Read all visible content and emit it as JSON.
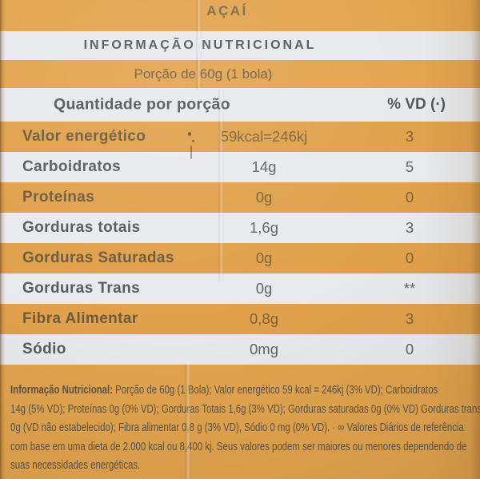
{
  "title": "AÇAÍ",
  "section_header": "INFORMAÇÃO NUTRICIONAL",
  "serving": "Porção de 60g (1 bola)",
  "table": {
    "quantity_header": "Quantidade por porção",
    "vd_header": "% VD (·)",
    "rows": [
      {
        "label": "Valor energético",
        "value": "59kcal=246kj",
        "vd": "3"
      },
      {
        "label": "Carboidratos",
        "value": "14g",
        "vd": "5"
      },
      {
        "label": "Proteínas",
        "value": "0g",
        "vd": "0"
      },
      {
        "label": "Gorduras totais",
        "value": "1,6g",
        "vd": "3"
      },
      {
        "label": "Gorduras Saturadas",
        "value": "0g",
        "vd": "0"
      },
      {
        "label": "Gorduras Trans",
        "value": "0g",
        "vd": "**"
      },
      {
        "label": "Fibra Alimentar",
        "value": "0,8g",
        "vd": "3"
      },
      {
        "label": "Sódio",
        "value": "0mg",
        "vd": "0"
      }
    ]
  },
  "footnote": {
    "bold_intro": "Informação Nutricional:",
    "lines": [
      " Porção de 60g (1 Bola); Valor energético 59 kcal = 246kj (3% VD); Carboidratos",
      "14g (5% VD); Proteínas 0g (0% VD); Gorduras Totais 1,6g (3% VD); Gorduras saturadas 0g (0% VD) Gorduras trans",
      "0g (VD não estabelecido); Fibra alimentar 0,8 g (3% VD), Sódio 0 mg (0% VD). · ∞ Valores Diários de referência",
      "com base em uma dieta de 2.000 kcal ou 8,400 kj. Seus valores podem ser maiores ou menores dependendo de",
      "suas necessidades energéticas."
    ]
  },
  "colors": {
    "package_orange": "#e3a44e",
    "band_white": "#e7e9ed",
    "text_brown": "#6b5b3f",
    "text_gray": "#595a5f"
  }
}
